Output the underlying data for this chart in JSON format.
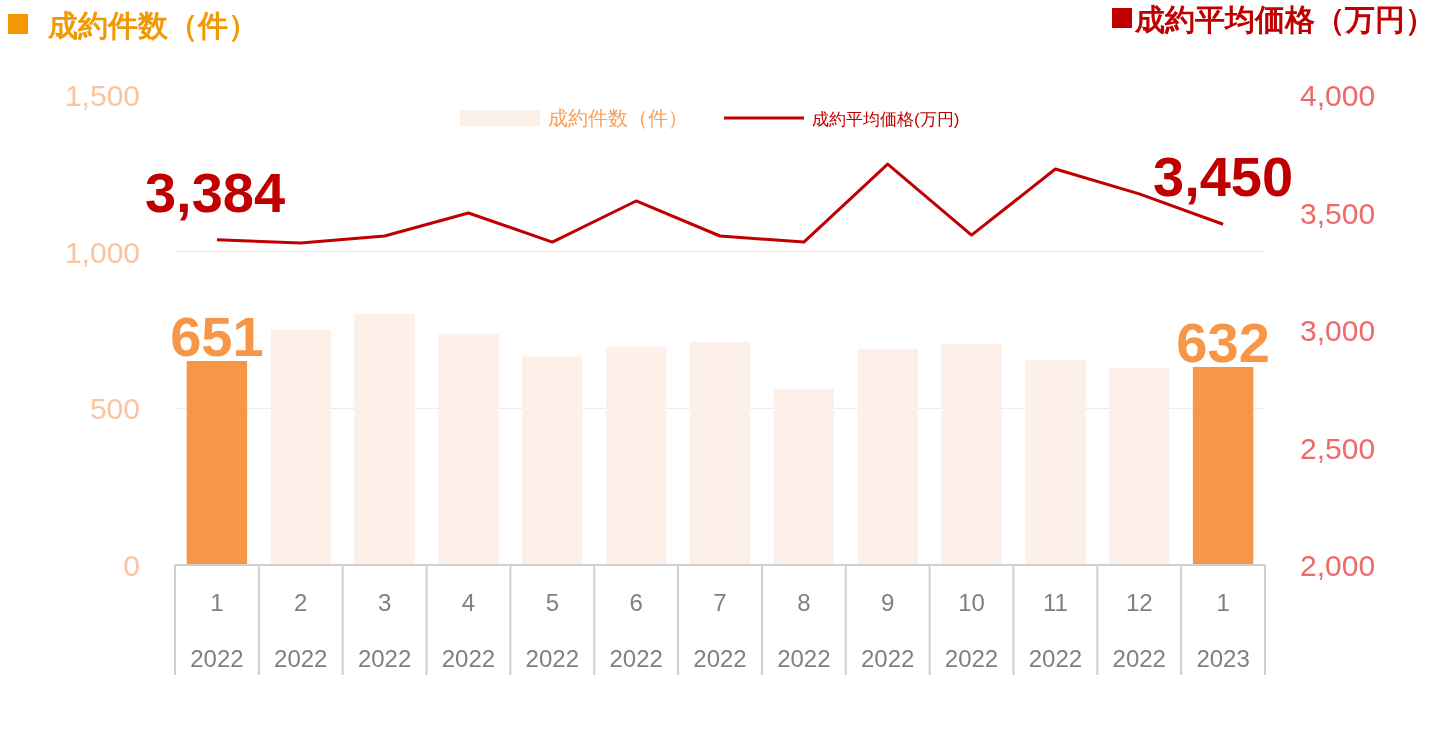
{
  "chart_data": {
    "type": "bar",
    "ylabel": "成約件数（件）",
    "y2label": "成約平均価格（万円）",
    "categories": [
      "1\n2022",
      "2\n2022",
      "3\n2022",
      "4\n2022",
      "5\n2022",
      "6\n2022",
      "7\n2022",
      "8\n2022",
      "9\n2022",
      "10\n2022",
      "11\n2022",
      "12\n2022",
      "1\n2023"
    ],
    "ylim": [
      0,
      1500
    ],
    "yticks": [
      0,
      500,
      {
        "value": 1000,
        "label": "1,000"
      },
      {
        "value": 1500,
        "label": "1,500"
      }
    ],
    "y2lim": [
      2000,
      4000
    ],
    "y2ticks": [
      {
        "value": 2000,
        "label": "2,000"
      },
      {
        "value": 2500,
        "label": "2,500"
      },
      {
        "value": 3000,
        "label": "3,000"
      },
      {
        "value": 3500,
        "label": "3,500"
      },
      {
        "value": 4000,
        "label": "4,000"
      }
    ],
    "grid": "y",
    "legend": "top",
    "series": [
      {
        "name": "成約件数（件）",
        "color": "#fdf0e8",
        "colors": [
          "#f79646",
          "#fdf0e8",
          "#fdf0e8",
          "#fdf0e8",
          "#fdf0e8",
          "#fdf0e8",
          "#fdf0e8",
          "#fdf0e8",
          "#fdf0e8",
          "#fdf0e8",
          "#fdf0e8",
          "#fdf0e8",
          "#f79646"
        ],
        "values": [
          651,
          751,
          802,
          738,
          665,
          697,
          712,
          562,
          690,
          706,
          655,
          629,
          632
        ],
        "value_labels": [
          "651",
          null,
          null,
          null,
          null,
          null,
          null,
          null,
          null,
          null,
          null,
          null,
          "632"
        ]
      },
      {
        "name": "成約平均価格(万円)",
        "type": "line",
        "axis": "y2",
        "color": "#c00000",
        "values": [
          3384,
          3370,
          3400,
          3498,
          3374,
          3549,
          3400,
          3374,
          3706,
          3404,
          3685,
          3579,
          3450
        ],
        "value_labels": [
          "3,384",
          null,
          null,
          null,
          null,
          null,
          null,
          null,
          null,
          null,
          null,
          null,
          "3,450"
        ]
      }
    ]
  }
}
